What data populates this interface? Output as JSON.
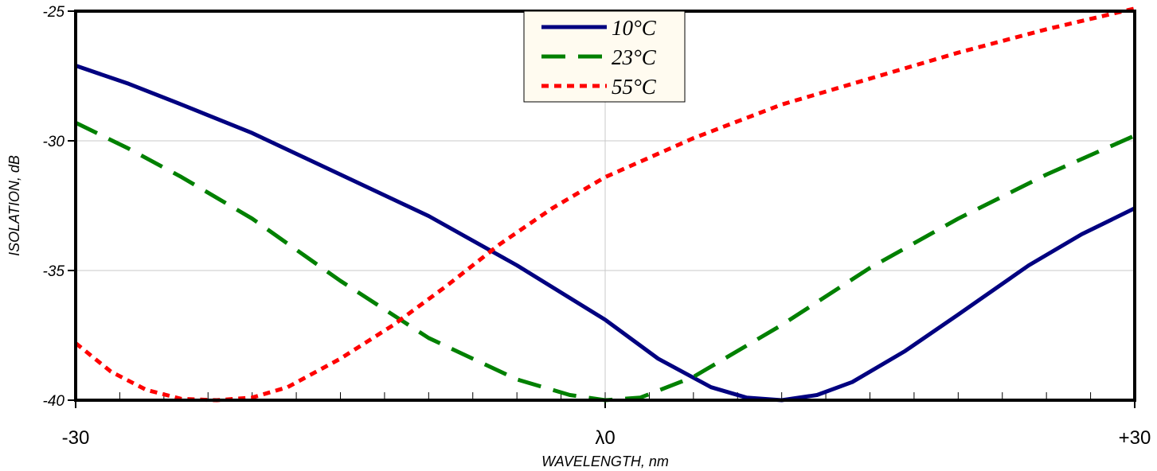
{
  "chart_data": {
    "type": "line",
    "xlabel": "WAVELENGTH, nm",
    "ylabel": "ISOLATION, dB",
    "xlim": [
      -30,
      30
    ],
    "ylim": [
      -40,
      -25
    ],
    "x_ticks": [
      {
        "value": -30,
        "label": "-30"
      },
      {
        "value": 0,
        "label": "λ0"
      },
      {
        "value": 30,
        "label": "+30"
      }
    ],
    "y_ticks": [
      {
        "value": -25,
        "label": "-25"
      },
      {
        "value": -30,
        "label": "-30"
      },
      {
        "value": -35,
        "label": "-35"
      },
      {
        "value": -40,
        "label": "-40"
      }
    ],
    "grid": true,
    "legend_position": "top-center",
    "series": [
      {
        "name": "10°C",
        "color": "#000080",
        "dash": "solid",
        "x": [
          -30,
          -27,
          -24,
          -20,
          -15,
          -10,
          -5,
          0,
          3,
          6,
          8,
          10,
          12,
          14,
          17,
          20,
          24,
          27,
          30
        ],
        "y": [
          -27.1,
          -27.8,
          -28.6,
          -29.7,
          -31.3,
          -32.9,
          -34.8,
          -36.9,
          -38.4,
          -39.5,
          -39.9,
          -40.0,
          -39.8,
          -39.3,
          -38.1,
          -36.7,
          -34.8,
          -33.6,
          -32.6
        ]
      },
      {
        "name": "23°C",
        "color": "#008000",
        "dash": "dashed",
        "x": [
          -30,
          -27,
          -24,
          -20,
          -15,
          -10,
          -5,
          -2,
          0,
          2,
          5,
          10,
          15,
          20,
          25,
          30
        ],
        "y": [
          -29.3,
          -30.3,
          -31.4,
          -33.0,
          -35.4,
          -37.6,
          -39.2,
          -39.8,
          -40.0,
          -39.9,
          -39.1,
          -37.1,
          -34.9,
          -33.0,
          -31.3,
          -29.8
        ]
      },
      {
        "name": "55°C",
        "color": "#ff0000",
        "dash": "dotted",
        "x": [
          -30,
          -28,
          -26,
          -24,
          -22,
          -20,
          -18,
          -15,
          -12,
          -9,
          -6,
          -3,
          0,
          5,
          10,
          15,
          20,
          25,
          30
        ],
        "y": [
          -37.8,
          -38.9,
          -39.6,
          -39.95,
          -40.0,
          -39.9,
          -39.5,
          -38.4,
          -37.1,
          -35.6,
          -34.0,
          -32.6,
          -31.4,
          -29.9,
          -28.6,
          -27.6,
          -26.6,
          -25.7,
          -24.9
        ]
      }
    ]
  }
}
